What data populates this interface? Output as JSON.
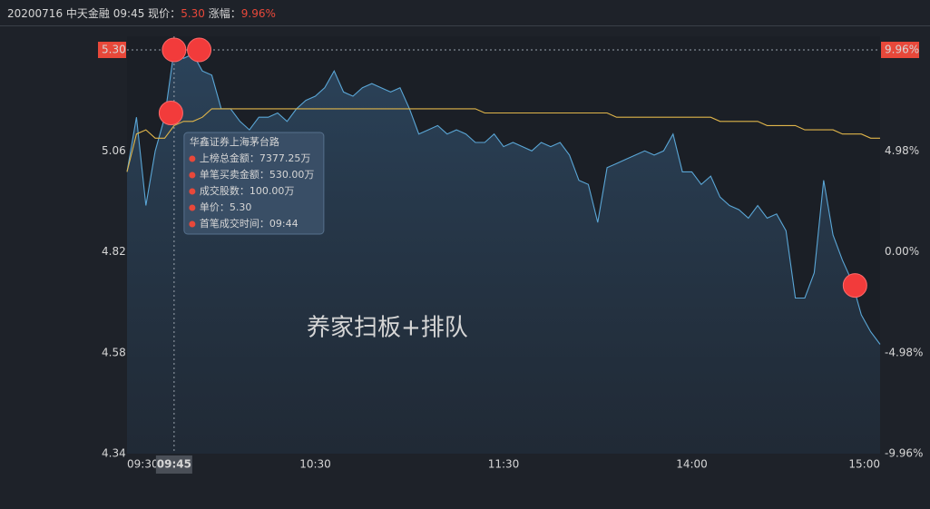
{
  "chart_data": {
    "type": "line",
    "header": {
      "date": "20200716",
      "name": "中天金融",
      "time": "09:45",
      "price_label": "现价：",
      "price": "5.30",
      "change_label": "涨幅：",
      "change": "9.96%"
    },
    "annotation": "养家扫板+排队",
    "x": [
      0,
      3,
      6,
      9,
      12,
      15,
      18,
      21,
      24,
      27,
      30,
      33,
      36,
      39,
      42,
      45,
      48,
      51,
      54,
      57,
      60,
      63,
      66,
      69,
      72,
      75,
      78,
      81,
      84,
      87,
      90,
      93,
      96,
      99,
      102,
      105,
      108,
      111,
      114,
      117,
      120,
      123,
      126,
      129,
      132,
      135,
      138,
      141,
      144,
      147,
      150,
      153,
      156,
      159,
      162,
      165,
      168,
      171,
      174,
      177,
      180,
      183,
      186,
      189,
      192,
      195,
      198,
      201,
      204,
      207,
      210,
      213,
      216,
      219,
      222,
      225,
      228,
      231,
      234,
      237,
      240
    ],
    "series": [
      {
        "name": "price",
        "color": "#5aa6d6",
        "values": [
          5.01,
          5.14,
          4.93,
          5.06,
          5.14,
          5.3,
          5.28,
          5.29,
          5.25,
          5.24,
          5.16,
          5.16,
          5.13,
          5.11,
          5.14,
          5.14,
          5.15,
          5.13,
          5.16,
          5.18,
          5.19,
          5.21,
          5.25,
          5.2,
          5.19,
          5.21,
          5.22,
          5.21,
          5.2,
          5.21,
          5.16,
          5.1,
          5.11,
          5.12,
          5.1,
          5.11,
          5.1,
          5.08,
          5.08,
          5.1,
          5.07,
          5.08,
          5.07,
          5.06,
          5.08,
          5.07,
          5.08,
          5.05,
          4.99,
          4.98,
          4.89,
          5.02,
          5.03,
          5.04,
          5.05,
          5.06,
          5.05,
          5.06,
          5.1,
          5.01,
          5.01,
          4.98,
          5.0,
          4.95,
          4.93,
          4.92,
          4.9,
          4.93,
          4.9,
          4.91,
          4.87,
          4.71,
          4.71,
          4.77,
          4.99,
          4.86,
          4.8,
          4.75,
          4.67,
          4.63,
          4.6
        ]
      },
      {
        "name": "average",
        "color": "#e0b54a",
        "values": [
          5.01,
          5.1,
          5.11,
          5.09,
          5.09,
          5.12,
          5.13,
          5.13,
          5.14,
          5.16,
          5.16,
          5.16,
          5.16,
          5.16,
          5.16,
          5.16,
          5.16,
          5.16,
          5.16,
          5.16,
          5.16,
          5.16,
          5.16,
          5.16,
          5.16,
          5.16,
          5.16,
          5.16,
          5.16,
          5.16,
          5.16,
          5.16,
          5.16,
          5.16,
          5.16,
          5.16,
          5.16,
          5.16,
          5.15,
          5.15,
          5.15,
          5.15,
          5.15,
          5.15,
          5.15,
          5.15,
          5.15,
          5.15,
          5.15,
          5.15,
          5.15,
          5.15,
          5.14,
          5.14,
          5.14,
          5.14,
          5.14,
          5.14,
          5.14,
          5.14,
          5.14,
          5.14,
          5.14,
          5.13,
          5.13,
          5.13,
          5.13,
          5.13,
          5.12,
          5.12,
          5.12,
          5.12,
          5.11,
          5.11,
          5.11,
          5.11,
          5.1,
          5.1,
          5.1,
          5.09,
          5.09
        ]
      }
    ],
    "area_color": "#2b4257",
    "markers": {
      "color": "#f23b3b",
      "x": [
        15,
        23,
        14,
        232
      ],
      "values": [
        5.3,
        5.3,
        5.15,
        4.74
      ]
    },
    "xlim": [
      0,
      240
    ],
    "xticks": [
      {
        "value": 0,
        "label": "09:30"
      },
      {
        "value": 60,
        "label": "10:30"
      },
      {
        "value": 120,
        "label": "11:30"
      },
      {
        "value": 180,
        "label": "14:00"
      },
      {
        "value": 240,
        "label": "15:00"
      }
    ],
    "ylim": [
      4.34,
      5.3
    ],
    "yticks": [
      {
        "value": 5.3,
        "label": "5.30"
      },
      5.06,
      4.82,
      4.58,
      4.34
    ],
    "y2lim": [
      -9.96,
      9.96
    ],
    "y2ticks": [
      {
        "value": 9.96,
        "label": "9.96%"
      },
      {
        "value": 4.98,
        "label": "4.98%"
      },
      {
        "value": 0,
        "label": "0.00%"
      },
      {
        "value": -4.98,
        "label": "-4.98%"
      },
      {
        "value": -9.96,
        "label": "-9.96%"
      }
    ],
    "up_color": "#e8483a",
    "down_color": "#3fae6a",
    "flat_color": "#e6e6e6",
    "crosshair": {
      "x": 15,
      "y": 5.3,
      "x_label": "09:45"
    },
    "tooltip": {
      "title": "华鑫证券上海茅台路",
      "items": [
        "上榜总金额：7377.25万",
        "单笔买卖金额：530.00万",
        "成交股数：100.00万",
        "单价：5.30",
        "首笔成交时间：09:44"
      ]
    }
  }
}
